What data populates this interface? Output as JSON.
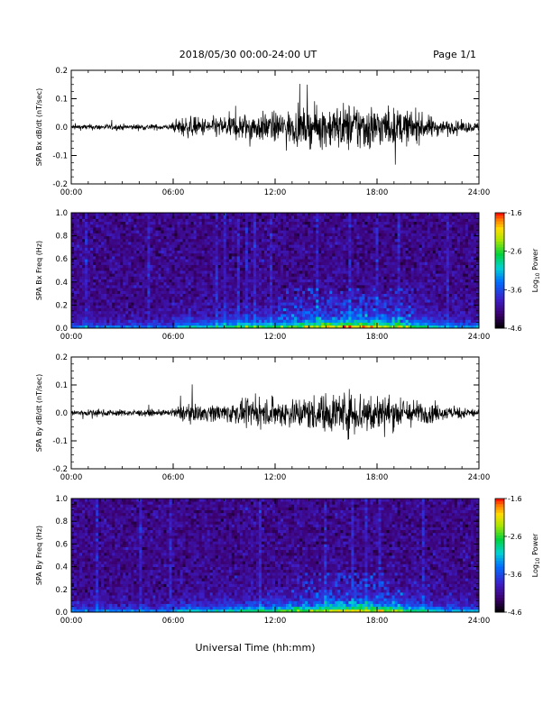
{
  "header": {
    "title": "2018/05/30  00:00-24:00 UT",
    "page": "Page 1/1"
  },
  "xaxis_label": "Universal Time (hh:mm)",
  "chart_data": [
    {
      "type": "line",
      "ylabel": "SPA Bx dB/dt (nT/sec)",
      "xlim_hours": [
        0,
        24
      ],
      "x_ticks": [
        "00:00",
        "06:00",
        "12:00",
        "18:00",
        "24:00"
      ],
      "ylim": [
        -0.2,
        0.2
      ],
      "y_ticks": [
        "-0.2",
        "-0.1",
        "0.0",
        "0.1",
        "0.2"
      ],
      "activity_profile": {
        "hours": [
          0,
          3,
          5.9,
          6.5,
          8,
          10,
          12,
          14,
          16,
          17,
          18,
          20,
          22,
          24
        ],
        "amplitude": [
          0.012,
          0.013,
          0.012,
          0.045,
          0.04,
          0.06,
          0.065,
          0.08,
          0.1,
          0.11,
          0.09,
          0.07,
          0.03,
          0.02
        ]
      }
    },
    {
      "type": "heatmap",
      "ylabel": "SPA Bx Freq (Hz)",
      "xlim_hours": [
        0,
        24
      ],
      "x_ticks": [
        "00:00",
        "06:00",
        "12:00",
        "18:00",
        "24:00"
      ],
      "ylim": [
        0,
        1.0
      ],
      "y_ticks": [
        "0.0",
        "0.2",
        "0.4",
        "0.6",
        "0.8",
        "1.0"
      ],
      "colorbar": {
        "label": "Log10 Power",
        "label_main": "Log",
        "label_sub": "10",
        "label_rest": " Power",
        "range": [
          -4.6,
          -1.6
        ],
        "ticks": [
          "-1.6",
          "-2.6",
          "-3.6",
          "-4.6"
        ]
      }
    },
    {
      "type": "line",
      "ylabel": "SPA By dB/dt (nT/sec)",
      "xlim_hours": [
        0,
        24
      ],
      "x_ticks": [
        "00:00",
        "06:00",
        "12:00",
        "18:00",
        "24:00"
      ],
      "ylim": [
        -0.2,
        0.2
      ],
      "y_ticks": [
        "-0.2",
        "-0.1",
        "0.0",
        "0.1",
        "0.2"
      ],
      "activity_profile": {
        "hours": [
          0,
          3,
          5.9,
          6.5,
          8,
          10,
          12,
          14,
          16,
          17,
          18,
          20,
          22,
          24
        ],
        "amplitude": [
          0.015,
          0.014,
          0.013,
          0.04,
          0.035,
          0.05,
          0.06,
          0.075,
          0.095,
          0.1,
          0.085,
          0.06,
          0.03,
          0.02
        ]
      }
    },
    {
      "type": "heatmap",
      "ylabel": "SPA By Freq (Hz)",
      "xlim_hours": [
        0,
        24
      ],
      "x_ticks": [
        "00:00",
        "06:00",
        "12:00",
        "18:00",
        "24:00"
      ],
      "ylim": [
        0,
        1.0
      ],
      "y_ticks": [
        "0.0",
        "0.2",
        "0.4",
        "0.6",
        "0.8",
        "1.0"
      ],
      "colorbar": {
        "label": "Log10 Power",
        "label_main": "Log",
        "label_sub": "10",
        "label_rest": " Power",
        "range": [
          -4.6,
          -1.6
        ],
        "ticks": [
          "-1.6",
          "-2.6",
          "-3.6",
          "-4.6"
        ]
      }
    }
  ]
}
